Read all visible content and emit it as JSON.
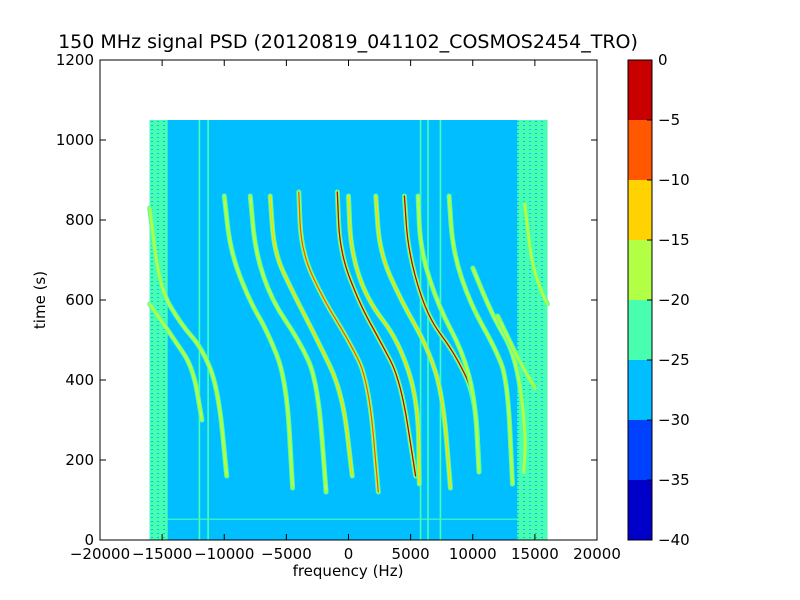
{
  "chart_data": {
    "type": "heatmap",
    "title": "150 MHz signal PSD (20120819_041102_COSMOS2454_TRO)",
    "xlabel": "frequency (Hz)",
    "ylabel": "time (s)",
    "xlim": [
      -20000,
      20000
    ],
    "ylim": [
      0,
      1200
    ],
    "x_ticks": [
      -20000,
      -15000,
      -10000,
      -5000,
      0,
      5000,
      10000,
      15000,
      20000
    ],
    "x_tick_labels": [
      "−20000",
      "−15000",
      "−10000",
      "−5000",
      "0",
      "5000",
      "10000",
      "15000",
      "20000"
    ],
    "y_ticks": [
      0,
      200,
      400,
      600,
      800,
      1000,
      1200
    ],
    "y_tick_labels": [
      "0",
      "200",
      "400",
      "600",
      "800",
      "1000",
      "1200"
    ],
    "data_extent": {
      "x": [
        -16000,
        16000
      ],
      "y": [
        0,
        1050
      ]
    },
    "background_level": -27.5,
    "edge_noise_level": -22.5,
    "grid": false,
    "colorbar": {
      "min": -40,
      "max": 0,
      "ticks": [
        0,
        -5,
        -10,
        -15,
        -20,
        -25,
        -30,
        -35,
        -40
      ],
      "tick_labels": [
        "0",
        "−5",
        "−10",
        "−15",
        "−20",
        "−25",
        "−30",
        "−35",
        "−40"
      ],
      "bands": [
        {
          "from": -40,
          "to": -35,
          "color": "#0000c8"
        },
        {
          "from": -35,
          "to": -30,
          "color": "#0040ff"
        },
        {
          "from": -30,
          "to": -25,
          "color": "#00beff"
        },
        {
          "from": -25,
          "to": -20,
          "color": "#48ffb0"
        },
        {
          "from": -20,
          "to": -15,
          "color": "#b2ff46"
        },
        {
          "from": -15,
          "to": -10,
          "color": "#ffd200"
        },
        {
          "from": -10,
          "to": -5,
          "color": "#ff5800"
        },
        {
          "from": -5,
          "to": 0,
          "color": "#c80000"
        }
      ]
    },
    "vertical_lines": [
      {
        "x": -12000,
        "level": -22.5
      },
      {
        "x": -11300,
        "level": -22.5
      },
      {
        "x": 5800,
        "level": -22.5
      },
      {
        "x": 6400,
        "level": -22.5
      },
      {
        "x": 7400,
        "level": -22.5
      }
    ],
    "horizontal_lines": [
      {
        "y": 52,
        "level": -22.5
      }
    ],
    "traces": [
      {
        "points": [
          [
            -16000,
            830
          ],
          [
            -15200,
            630
          ],
          [
            -13500,
            540
          ],
          [
            -11800,
            480
          ],
          [
            -10500,
            380
          ],
          [
            -9800,
            160
          ]
        ],
        "peak_level": -17.5
      },
      {
        "points": [
          [
            -16000,
            590
          ],
          [
            -14000,
            500
          ],
          [
            -12500,
            430
          ],
          [
            -11800,
            300
          ]
        ],
        "peak_level": -17.5
      },
      {
        "points": [
          [
            -10000,
            860
          ],
          [
            -9500,
            720
          ],
          [
            -8000,
            600
          ],
          [
            -6500,
            520
          ],
          [
            -5000,
            400
          ],
          [
            -4500,
            130
          ]
        ],
        "peak_level": -17.5
      },
      {
        "points": [
          [
            -7900,
            860
          ],
          [
            -7500,
            720
          ],
          [
            -6200,
            600
          ],
          [
            -4000,
            500
          ],
          [
            -2500,
            400
          ],
          [
            -1800,
            120
          ]
        ],
        "peak_level": -17.5
      },
      {
        "points": [
          [
            -6300,
            860
          ],
          [
            -6000,
            720
          ],
          [
            -4500,
            620
          ],
          [
            -2500,
            500
          ],
          [
            -500,
            370
          ],
          [
            300,
            160
          ]
        ],
        "peak_level": -12.5
      },
      {
        "points": [
          [
            -4000,
            870
          ],
          [
            -3800,
            720
          ],
          [
            -2000,
            600
          ],
          [
            0,
            500
          ],
          [
            1600,
            400
          ],
          [
            2400,
            120
          ]
        ],
        "peak_level": -7.5
      },
      {
        "points": [
          [
            -900,
            870
          ],
          [
            -700,
            720
          ],
          [
            900,
            590
          ],
          [
            2500,
            500
          ],
          [
            4200,
            400
          ],
          [
            5400,
            160
          ]
        ],
        "peak_level": -2.5
      },
      {
        "points": [
          [
            0,
            860
          ],
          [
            200,
            720
          ],
          [
            1500,
            600
          ],
          [
            4000,
            500
          ],
          [
            5600,
            350
          ],
          [
            5700,
            140
          ]
        ],
        "peak_level": -12.5
      },
      {
        "points": [
          [
            2200,
            860
          ],
          [
            2500,
            720
          ],
          [
            4200,
            600
          ],
          [
            6400,
            480
          ],
          [
            7600,
            360
          ],
          [
            8200,
            130
          ]
        ],
        "peak_level": -12.5
      },
      {
        "points": [
          [
            4500,
            860
          ],
          [
            4800,
            720
          ],
          [
            6300,
            560
          ],
          [
            8500,
            470
          ],
          [
            10200,
            360
          ],
          [
            10500,
            180
          ]
        ],
        "peak_level": -2.5
      },
      {
        "points": [
          [
            8100,
            860
          ],
          [
            8400,
            720
          ],
          [
            9800,
            590
          ],
          [
            11800,
            480
          ],
          [
            12800,
            400
          ],
          [
            13200,
            140
          ]
        ],
        "peak_level": -17.5
      },
      {
        "points": [
          [
            5600,
            860
          ],
          [
            5800,
            720
          ],
          [
            7300,
            580
          ],
          [
            9200,
            470
          ],
          [
            10200,
            350
          ],
          [
            10500,
            170
          ]
        ],
        "peak_level": -17.5
      },
      {
        "points": [
          [
            10000,
            680
          ],
          [
            11600,
            560
          ],
          [
            13500,
            460
          ],
          [
            14300,
            260
          ],
          [
            14100,
            170
          ]
        ],
        "peak_level": -17.5
      },
      {
        "points": [
          [
            14200,
            840
          ],
          [
            14700,
            700
          ],
          [
            15400,
            630
          ],
          [
            16000,
            590
          ]
        ],
        "peak_level": -17.5
      },
      {
        "points": [
          [
            12000,
            560
          ],
          [
            13700,
            450
          ],
          [
            15000,
            380
          ]
        ],
        "peak_level": -17.5
      }
    ]
  }
}
